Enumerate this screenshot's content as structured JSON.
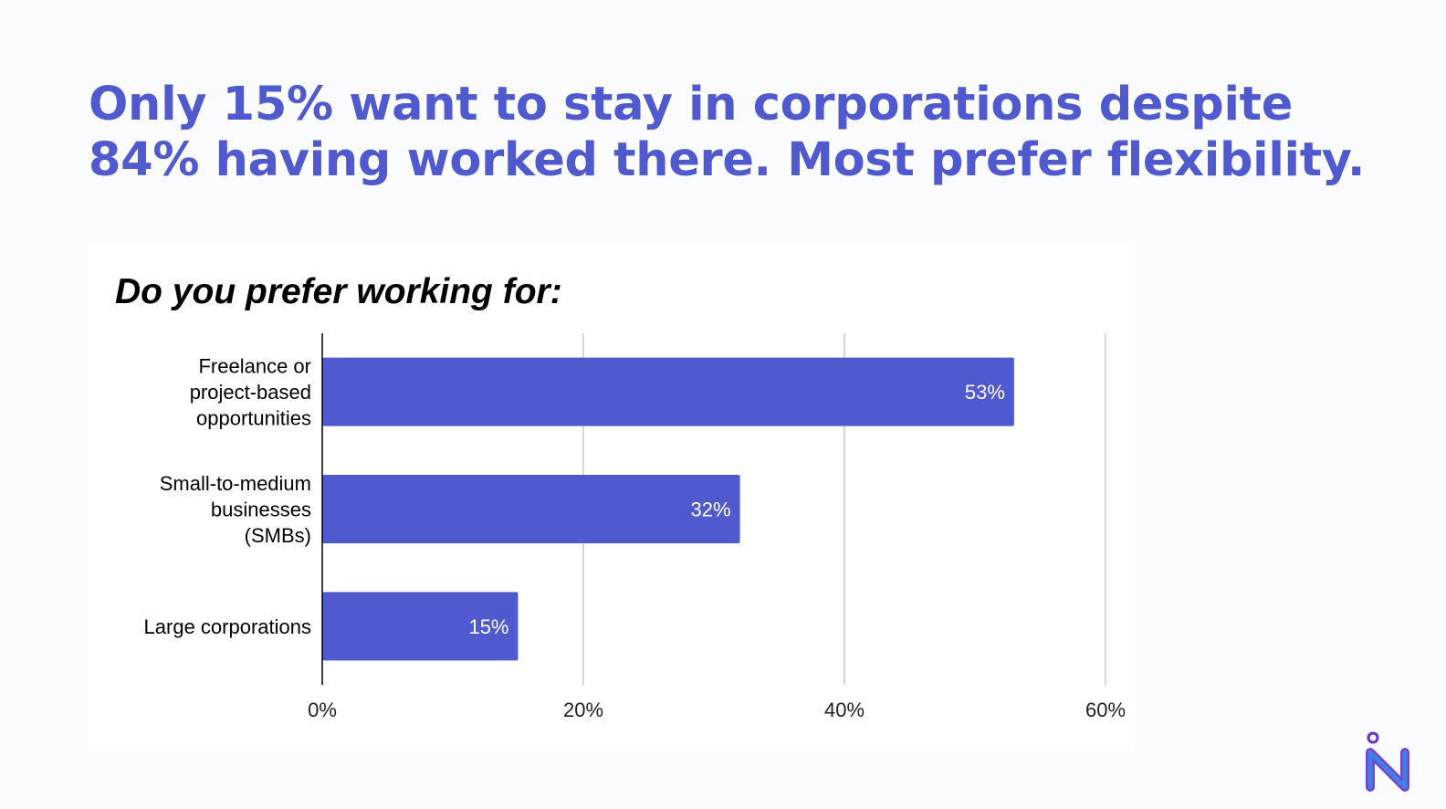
{
  "headline": {
    "line1": "Only 15% want to stay in corporations despite",
    "line2": "84% having worked there. Most prefer flexibility."
  },
  "colors": {
    "accent": "#5159cf",
    "bar": "#5159cf",
    "grid": "#cccccc",
    "axis": "#000000"
  },
  "logo": {
    "icon": "n-logo-icon"
  },
  "chart_data": {
    "type": "bar",
    "orientation": "horizontal",
    "title": "Do you prefer working for:",
    "categories": [
      [
        "Freelance or",
        "project-based",
        "opportunities"
      ],
      [
        "Small-to-medium",
        "businesses",
        "(SMBs)"
      ],
      [
        "Large corporations"
      ]
    ],
    "values": [
      53,
      32,
      15
    ],
    "data_labels": [
      "53%",
      "32%",
      "15%"
    ],
    "xlim": [
      0,
      60
    ],
    "xticks": [
      0,
      20,
      40,
      60
    ],
    "xtick_labels": [
      "0%",
      "20%",
      "40%",
      "60%"
    ],
    "grid": true,
    "legend": "none"
  }
}
